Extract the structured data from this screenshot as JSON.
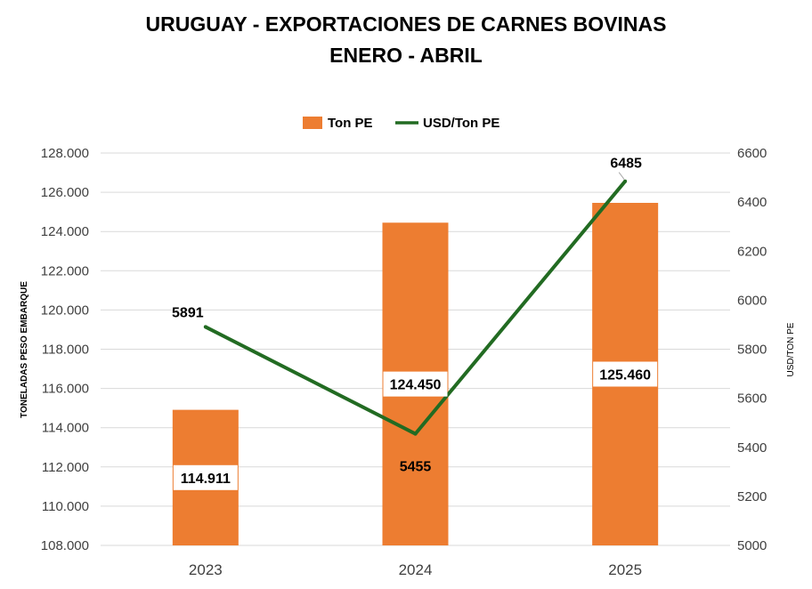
{
  "chart_data": {
    "type": "bar",
    "title": "URUGUAY - EXPORTACIONES DE CARNES BOVINAS",
    "subtitle": "ENERO - ABRIL",
    "categories": [
      "2023",
      "2024",
      "2025"
    ],
    "series": [
      {
        "name": "Ton PE",
        "type": "bar",
        "axis": "left",
        "values": [
          114911,
          124450,
          125460
        ],
        "labels": [
          "114.911",
          "124.450",
          "125.460"
        ],
        "color": "#ED7D31"
      },
      {
        "name": "USD/Ton PE",
        "type": "line",
        "axis": "right",
        "values": [
          5891,
          5455,
          6485
        ],
        "labels": [
          "5891",
          "5455",
          "6485"
        ],
        "color": "#226B22"
      }
    ],
    "ylabel": "TONELADAS PESO EMBARQUE",
    "y2label": "USD/TON PE",
    "ylim": [
      108000,
      128000
    ],
    "y2lim": [
      5000,
      6600
    ],
    "yticks": [
      108000,
      110000,
      112000,
      114000,
      116000,
      118000,
      120000,
      122000,
      124000,
      126000,
      128000
    ],
    "ytick_labels": [
      "108.000",
      "110.000",
      "112.000",
      "114.000",
      "116.000",
      "118.000",
      "120.000",
      "122.000",
      "124.000",
      "126.000",
      "128.000"
    ],
    "y2ticks": [
      5000,
      5200,
      5400,
      5600,
      5800,
      6000,
      6200,
      6400,
      6600
    ],
    "y2tick_labels": [
      "5000",
      "5200",
      "5400",
      "5600",
      "5800",
      "6000",
      "6200",
      "6400",
      "6600"
    ],
    "grid": true,
    "legend_position": "top-center"
  }
}
